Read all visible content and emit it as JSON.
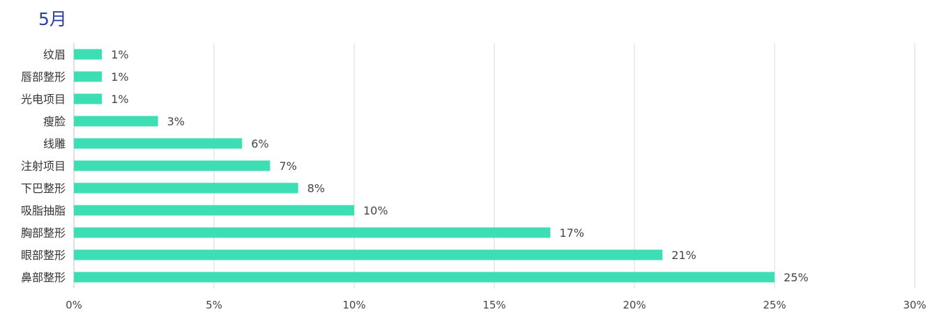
{
  "chart_data": {
    "type": "bar",
    "orientation": "horizontal",
    "title": "5月",
    "categories": [
      "纹眉",
      "唇部整形",
      "光电项目",
      "瘦脸",
      "线雕",
      "注射项目",
      "下巴整形",
      "吸脂抽脂",
      "胸部整形",
      "眼部整形",
      "鼻部整形"
    ],
    "values": [
      1,
      1,
      1,
      3,
      6,
      7,
      8,
      10,
      17,
      21,
      25
    ],
    "value_labels": [
      "1%",
      "1%",
      "1%",
      "3%",
      "6%",
      "7%",
      "8%",
      "10%",
      "17%",
      "21%",
      "25%"
    ],
    "x_ticks": [
      "0%",
      "5%",
      "10%",
      "15%",
      "20%",
      "25%",
      "30%"
    ],
    "xlim": [
      0,
      30
    ],
    "xlabel": "",
    "ylabel": "",
    "grid": true,
    "legend": "none",
    "colors": {
      "bar": "#3ddeb3",
      "title": "#2b3fa5",
      "grid": "#d9d9d9"
    }
  }
}
